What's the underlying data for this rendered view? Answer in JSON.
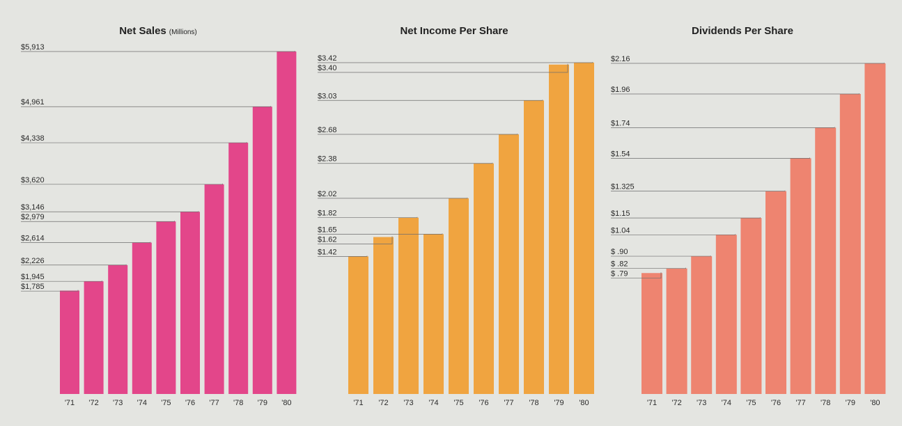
{
  "chart_data": [
    {
      "type": "bar",
      "title": "Net Sales",
      "subtitle": "(Millions)",
      "color": "#e3468a",
      "categories": [
        "'71",
        "'72",
        "'73",
        "'74",
        "'75",
        "'76",
        "'77",
        "'78",
        "'79",
        "'80"
      ],
      "values": [
        1785,
        1945,
        2226,
        2614,
        2979,
        3146,
        3620,
        4338,
        4961,
        5913
      ],
      "labels": [
        "$1,785",
        "$1,945",
        "$2,226",
        "$2,614",
        "$2,979",
        "$3,146",
        "$3,620",
        "$4,338",
        "$4,961",
        "$5,913"
      ],
      "ylim": [
        0,
        5913
      ]
    },
    {
      "type": "bar",
      "title": "Net Income Per Share",
      "subtitle": "",
      "color": "#f0a440",
      "categories": [
        "'71",
        "'72",
        "'73",
        "'74",
        "'75",
        "'76",
        "'77",
        "'78",
        "'79",
        "'80"
      ],
      "values": [
        1.42,
        1.62,
        1.82,
        1.65,
        2.02,
        2.38,
        2.68,
        3.03,
        3.4,
        3.42
      ],
      "labels": [
        "$1.42",
        "$1.62",
        "$1.82",
        "$1.65",
        "$2.02",
        "$2.38",
        "$2.68",
        "$3.03",
        "$3.40",
        "$3.42"
      ],
      "ylim": [
        0,
        3.42
      ]
    },
    {
      "type": "bar",
      "title": "Dividends Per Share",
      "subtitle": "",
      "color": "#ee8470",
      "categories": [
        "'71",
        "'72",
        "'73",
        "'74",
        "'75",
        "'76",
        "'77",
        "'78",
        "'79",
        "'80"
      ],
      "values": [
        0.79,
        0.82,
        0.9,
        1.04,
        1.15,
        1.325,
        1.54,
        1.74,
        1.96,
        2.16
      ],
      "labels": [
        "$ .79",
        "$ .82",
        "$ .90",
        "$1.04",
        "$1.15",
        "$1.325",
        "$1.54",
        "$1.74",
        "$1.96",
        "$2.16"
      ],
      "ylim": [
        0,
        2.16
      ]
    }
  ]
}
